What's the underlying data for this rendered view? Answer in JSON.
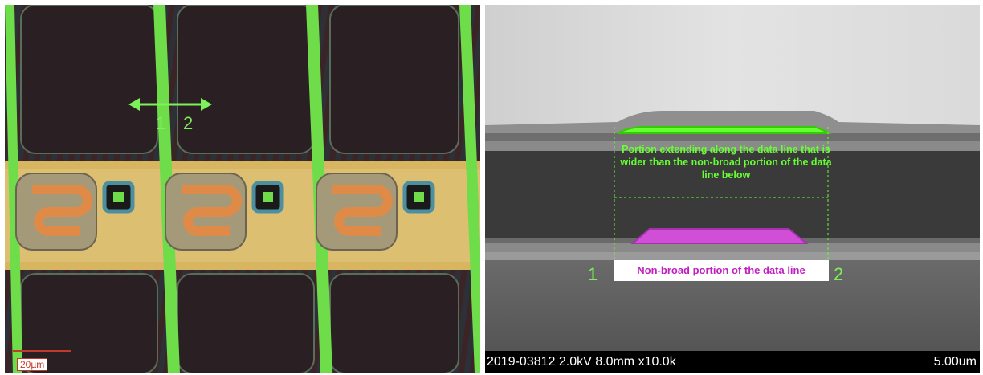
{
  "left_panel": {
    "marker_1": "1",
    "marker_2": "2",
    "scale_bar_label": "20µm"
  },
  "right_panel": {
    "annotation_top": "Portion extending along the data line that is wider than the non-broad portion of the data line below",
    "annotation_bottom": "Non-broad portion of the data line",
    "marker_1": "1",
    "marker_2": "2",
    "info_bar_text": "2019-03812 2.0kV 8.0mm x10.0k",
    "scale_label": "5.00um"
  },
  "colors": {
    "highlight_green": "#66ff33",
    "highlight_magenta": "#d14fd6"
  }
}
